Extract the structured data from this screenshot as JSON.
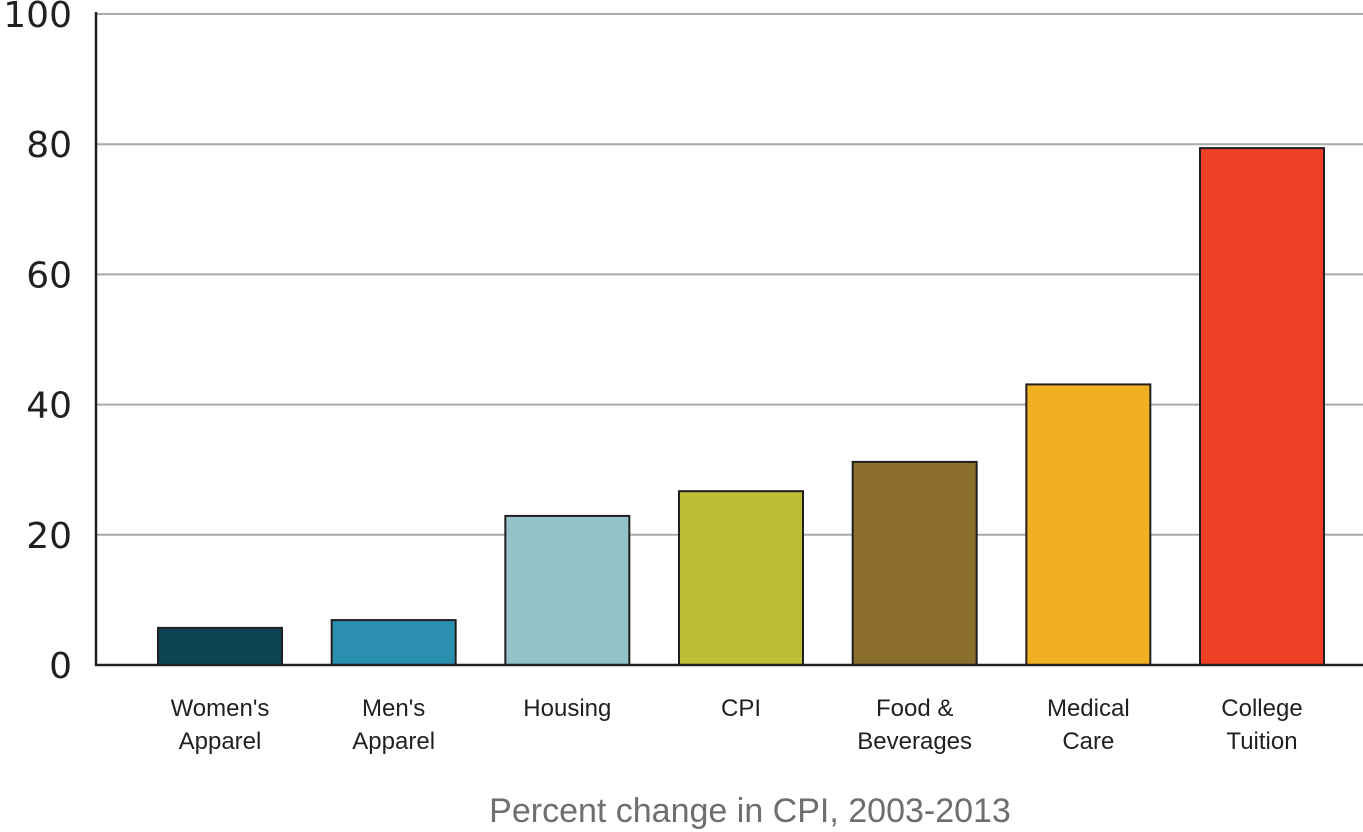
{
  "chart_data": {
    "type": "bar",
    "categories": [
      [
        "Women's",
        "Apparel"
      ],
      [
        "Men's",
        "Apparel"
      ],
      [
        "Housing"
      ],
      [
        "CPI"
      ],
      [
        "Food &",
        "Beverages"
      ],
      [
        "Medical",
        "Care"
      ],
      [
        "College",
        "Tuition"
      ]
    ],
    "values": [
      5.7,
      6.9,
      22.9,
      26.7,
      31.2,
      43.1,
      79.4
    ],
    "colors": [
      "#0b4453",
      "#2b8fb0",
      "#93c2c8",
      "#bdbe35",
      "#8b6e2d",
      "#f0b022",
      "#ee4024"
    ],
    "title": "",
    "xlabel": "Percent change in CPI, 2003-2013",
    "ylabel": "",
    "ylim": [
      0,
      100
    ],
    "yticks": [
      0,
      20,
      40,
      60,
      80,
      100
    ],
    "grid": "horizontal"
  }
}
